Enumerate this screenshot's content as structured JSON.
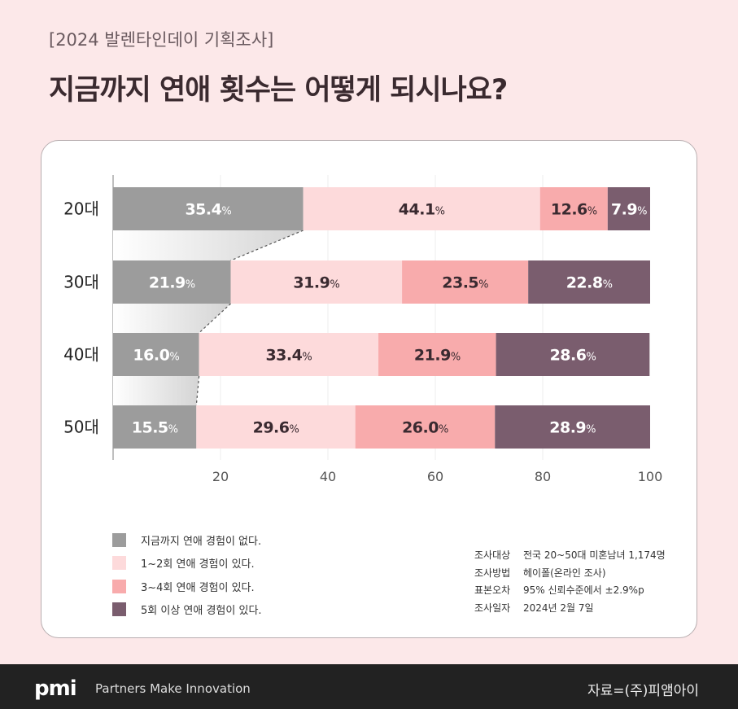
{
  "header": {
    "subtitle": "[2024 발렌타인데이 기획조사]",
    "title": "지금까지 연애 횟수는 어떻게 되시나요?"
  },
  "chart_data": {
    "type": "bar",
    "orientation": "horizontal",
    "stacked": true,
    "categories": [
      "20대",
      "30대",
      "40대",
      "50대"
    ],
    "series": [
      {
        "name": "지금까지 연애  경험이 없다.",
        "color": "#9c9c9c",
        "label_color": "#ffffff",
        "values": [
          35.4,
          21.9,
          16.0,
          15.5
        ]
      },
      {
        "name": "1~2회  연애 경험이 있다.",
        "color": "#fddadb",
        "label_color": "#3a2a30",
        "values": [
          44.1,
          31.9,
          33.4,
          29.6
        ]
      },
      {
        "name": "3~4회 연애 경험이 있다.",
        "color": "#f8abac",
        "label_color": "#3a2a30",
        "values": [
          12.6,
          23.5,
          21.9,
          26.0
        ]
      },
      {
        "name": "5회 이상 연애 경험이 있다.",
        "color": "#7a5d6e",
        "label_color": "#ffffff",
        "values": [
          7.9,
          22.8,
          28.6,
          28.9
        ]
      }
    ],
    "label_suffix": "%",
    "xlim": [
      0,
      100
    ],
    "xticks": [
      20,
      40,
      60,
      80,
      100
    ],
    "grid": true,
    "legend": "bottom-left"
  },
  "survey_info": [
    {
      "label": "조사대상",
      "value": "전국 20~50대 미혼남녀 1,174명"
    },
    {
      "label": "조사방법",
      "value": "헤이폴(온라인 조사)"
    },
    {
      "label": "표본오차",
      "value": "95% 신뢰수준에서 ±2.9%p"
    },
    {
      "label": "조사일자",
      "value": "2024년 2월 7일"
    }
  ],
  "footer": {
    "logo": "pmi",
    "tagline": "Partners Make Innovation",
    "source": "자료=(주)피앰아이"
  }
}
